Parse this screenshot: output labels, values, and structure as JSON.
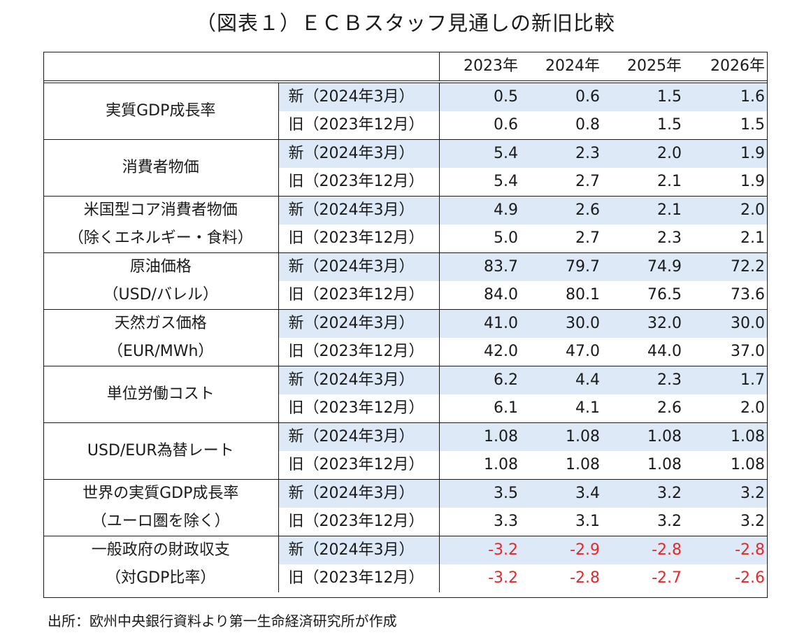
{
  "title": "（図表１）ＥＣＢスタッフ見通しの新旧比較",
  "years": [
    "2023年",
    "2024年",
    "2025年",
    "2026年"
  ],
  "groups": [
    {
      "label": [
        "実質GDP成長率"
      ],
      "new": {
        "label": "新（2024年3月）",
        "values": [
          "0.5",
          "0.6",
          "1.5",
          "1.6"
        ]
      },
      "old": {
        "label": "旧（2023年12月）",
        "values": [
          "0.6",
          "0.8",
          "1.5",
          "1.5"
        ]
      }
    },
    {
      "label": [
        "消費者物価"
      ],
      "new": {
        "label": "新（2024年3月）",
        "values": [
          "5.4",
          "2.3",
          "2.0",
          "1.9"
        ]
      },
      "old": {
        "label": "旧（2023年12月）",
        "values": [
          "5.4",
          "2.7",
          "2.1",
          "1.9"
        ]
      }
    },
    {
      "label": [
        "米国型コア消費者物価",
        "（除くエネルギー・食料）"
      ],
      "new": {
        "label": "新（2024年3月）",
        "values": [
          "4.9",
          "2.6",
          "2.1",
          "2.0"
        ]
      },
      "old": {
        "label": "旧（2023年12月）",
        "values": [
          "5.0",
          "2.7",
          "2.3",
          "2.1"
        ]
      }
    },
    {
      "label": [
        "原油価格",
        "（USD/バレル）"
      ],
      "new": {
        "label": "新（2024年3月）",
        "values": [
          "83.7",
          "79.7",
          "74.9",
          "72.2"
        ]
      },
      "old": {
        "label": "旧（2023年12月）",
        "values": [
          "84.0",
          "80.1",
          "76.5",
          "73.6"
        ]
      }
    },
    {
      "label": [
        "天然ガス価格",
        "（EUR/MWh）"
      ],
      "new": {
        "label": "新（2024年3月）",
        "values": [
          "41.0",
          "30.0",
          "32.0",
          "30.0"
        ]
      },
      "old": {
        "label": "旧（2023年12月）",
        "values": [
          "42.0",
          "47.0",
          "44.0",
          "37.0"
        ]
      }
    },
    {
      "label": [
        "単位労働コスト"
      ],
      "new": {
        "label": "新（2024年3月）",
        "values": [
          "6.2",
          "4.4",
          "2.3",
          "1.7"
        ]
      },
      "old": {
        "label": "旧（2023年12月）",
        "values": [
          "6.1",
          "4.1",
          "2.6",
          "2.0"
        ]
      }
    },
    {
      "label": [
        "USD/EUR為替レート"
      ],
      "new": {
        "label": "新（2024年3月）",
        "values": [
          "1.08",
          "1.08",
          "1.08",
          "1.08"
        ]
      },
      "old": {
        "label": "旧（2023年12月）",
        "values": [
          "1.08",
          "1.08",
          "1.08",
          "1.08"
        ]
      }
    },
    {
      "label": [
        "世界の実質GDP成長率",
        "（ユーロ圏を除く）"
      ],
      "new": {
        "label": "新（2024年3月）",
        "values": [
          "3.5",
          "3.4",
          "3.2",
          "3.2"
        ]
      },
      "old": {
        "label": "旧（2023年12月）",
        "values": [
          "3.3",
          "3.1",
          "3.2",
          "3.2"
        ]
      }
    },
    {
      "label": [
        "一般政府の財政収支",
        "（対GDP比率）"
      ],
      "new": {
        "label": "新（2024年3月）",
        "values": [
          "-3.2",
          "-2.9",
          "-2.8",
          "-2.8"
        ]
      },
      "old": {
        "label": "旧（2023年12月）",
        "values": [
          "-3.2",
          "-2.8",
          "-2.7",
          "-2.6"
        ]
      }
    }
  ],
  "source": "出所：欧州中央銀行資料より第一生命経済研究所が作成",
  "colors": {
    "new_row_bg": "#dde9f6",
    "negative": "#e8262a"
  }
}
